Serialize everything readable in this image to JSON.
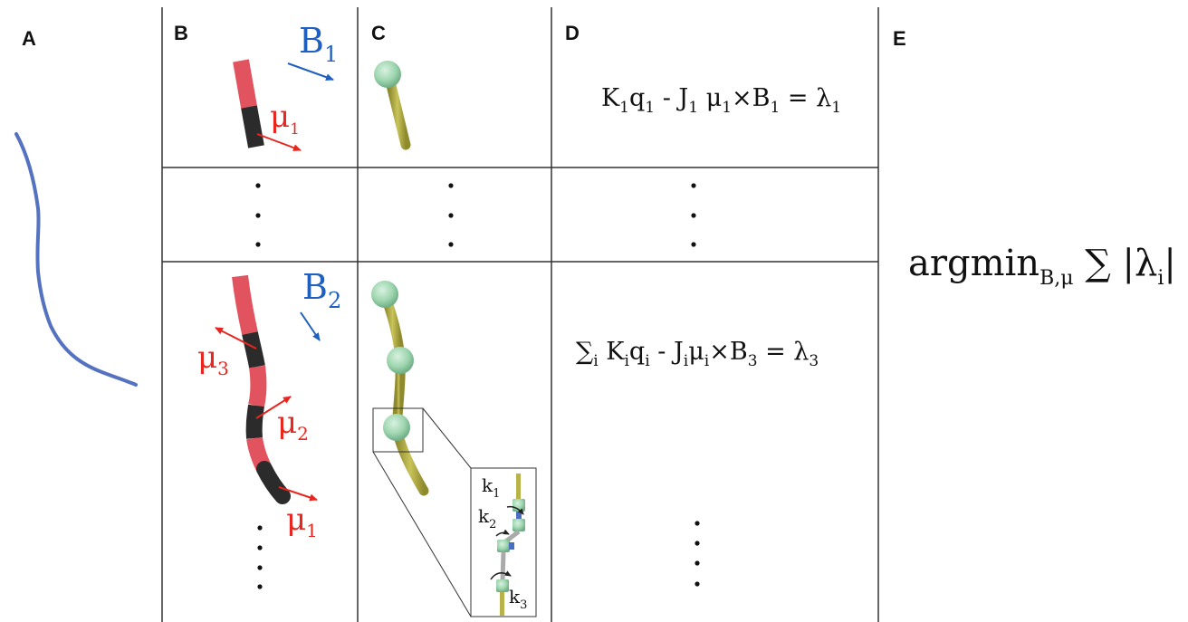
{
  "panels": {
    "a": {
      "letter": "A"
    },
    "b": {
      "letter": "B",
      "top_field": {
        "base": "B",
        "sub": "1"
      },
      "bottom_field": {
        "base": "B",
        "sub": "2"
      },
      "top_moment": {
        "base": "μ",
        "sub": "1"
      },
      "moments": [
        {
          "base": "μ",
          "sub": "3"
        },
        {
          "base": "μ",
          "sub": "2"
        },
        {
          "base": "μ",
          "sub": "1"
        }
      ]
    },
    "c": {
      "letter": "C",
      "springs": [
        {
          "base": "k",
          "sub": "1"
        },
        {
          "base": "k",
          "sub": "2"
        },
        {
          "base": "k",
          "sub": "3"
        }
      ]
    },
    "d": {
      "letter": "D",
      "eq1": {
        "p1": "K",
        "p1s": "1",
        "p2": "q",
        "p2s": "1",
        "p3": " - J",
        "p3s": "1",
        "p4": " μ",
        "p4s": "1",
        "p5": "×B",
        "p5s": "1",
        "p6": " = λ",
        "p6s": "1"
      },
      "eq2": {
        "p0": "∑",
        "p0s": "i",
        "p1": " K",
        "p1s": "i",
        "p2": "q",
        "p2s": "i",
        "p3": " - J",
        "p3s": "i",
        "p4": "μ",
        "p4s": "i",
        "p5": "×B",
        "p5s": "3",
        "p6": " = λ",
        "p6s": "3"
      }
    },
    "e": {
      "letter": "E",
      "expr": {
        "p1": "argmin",
        "p1s": "B,μ",
        "p2": " ∑ |λ",
        "p2s": "i",
        "p3": "|"
      }
    }
  },
  "colors": {
    "filament_blue": "#5472c0",
    "segment_red": "#e0535f",
    "segment_black": "#2b2b2b",
    "rod_olive": "#b8b24a",
    "sphere_green": "#9fd6b0",
    "arrow_red": "#e8251f",
    "arrow_blue": "#1f5fbf"
  }
}
